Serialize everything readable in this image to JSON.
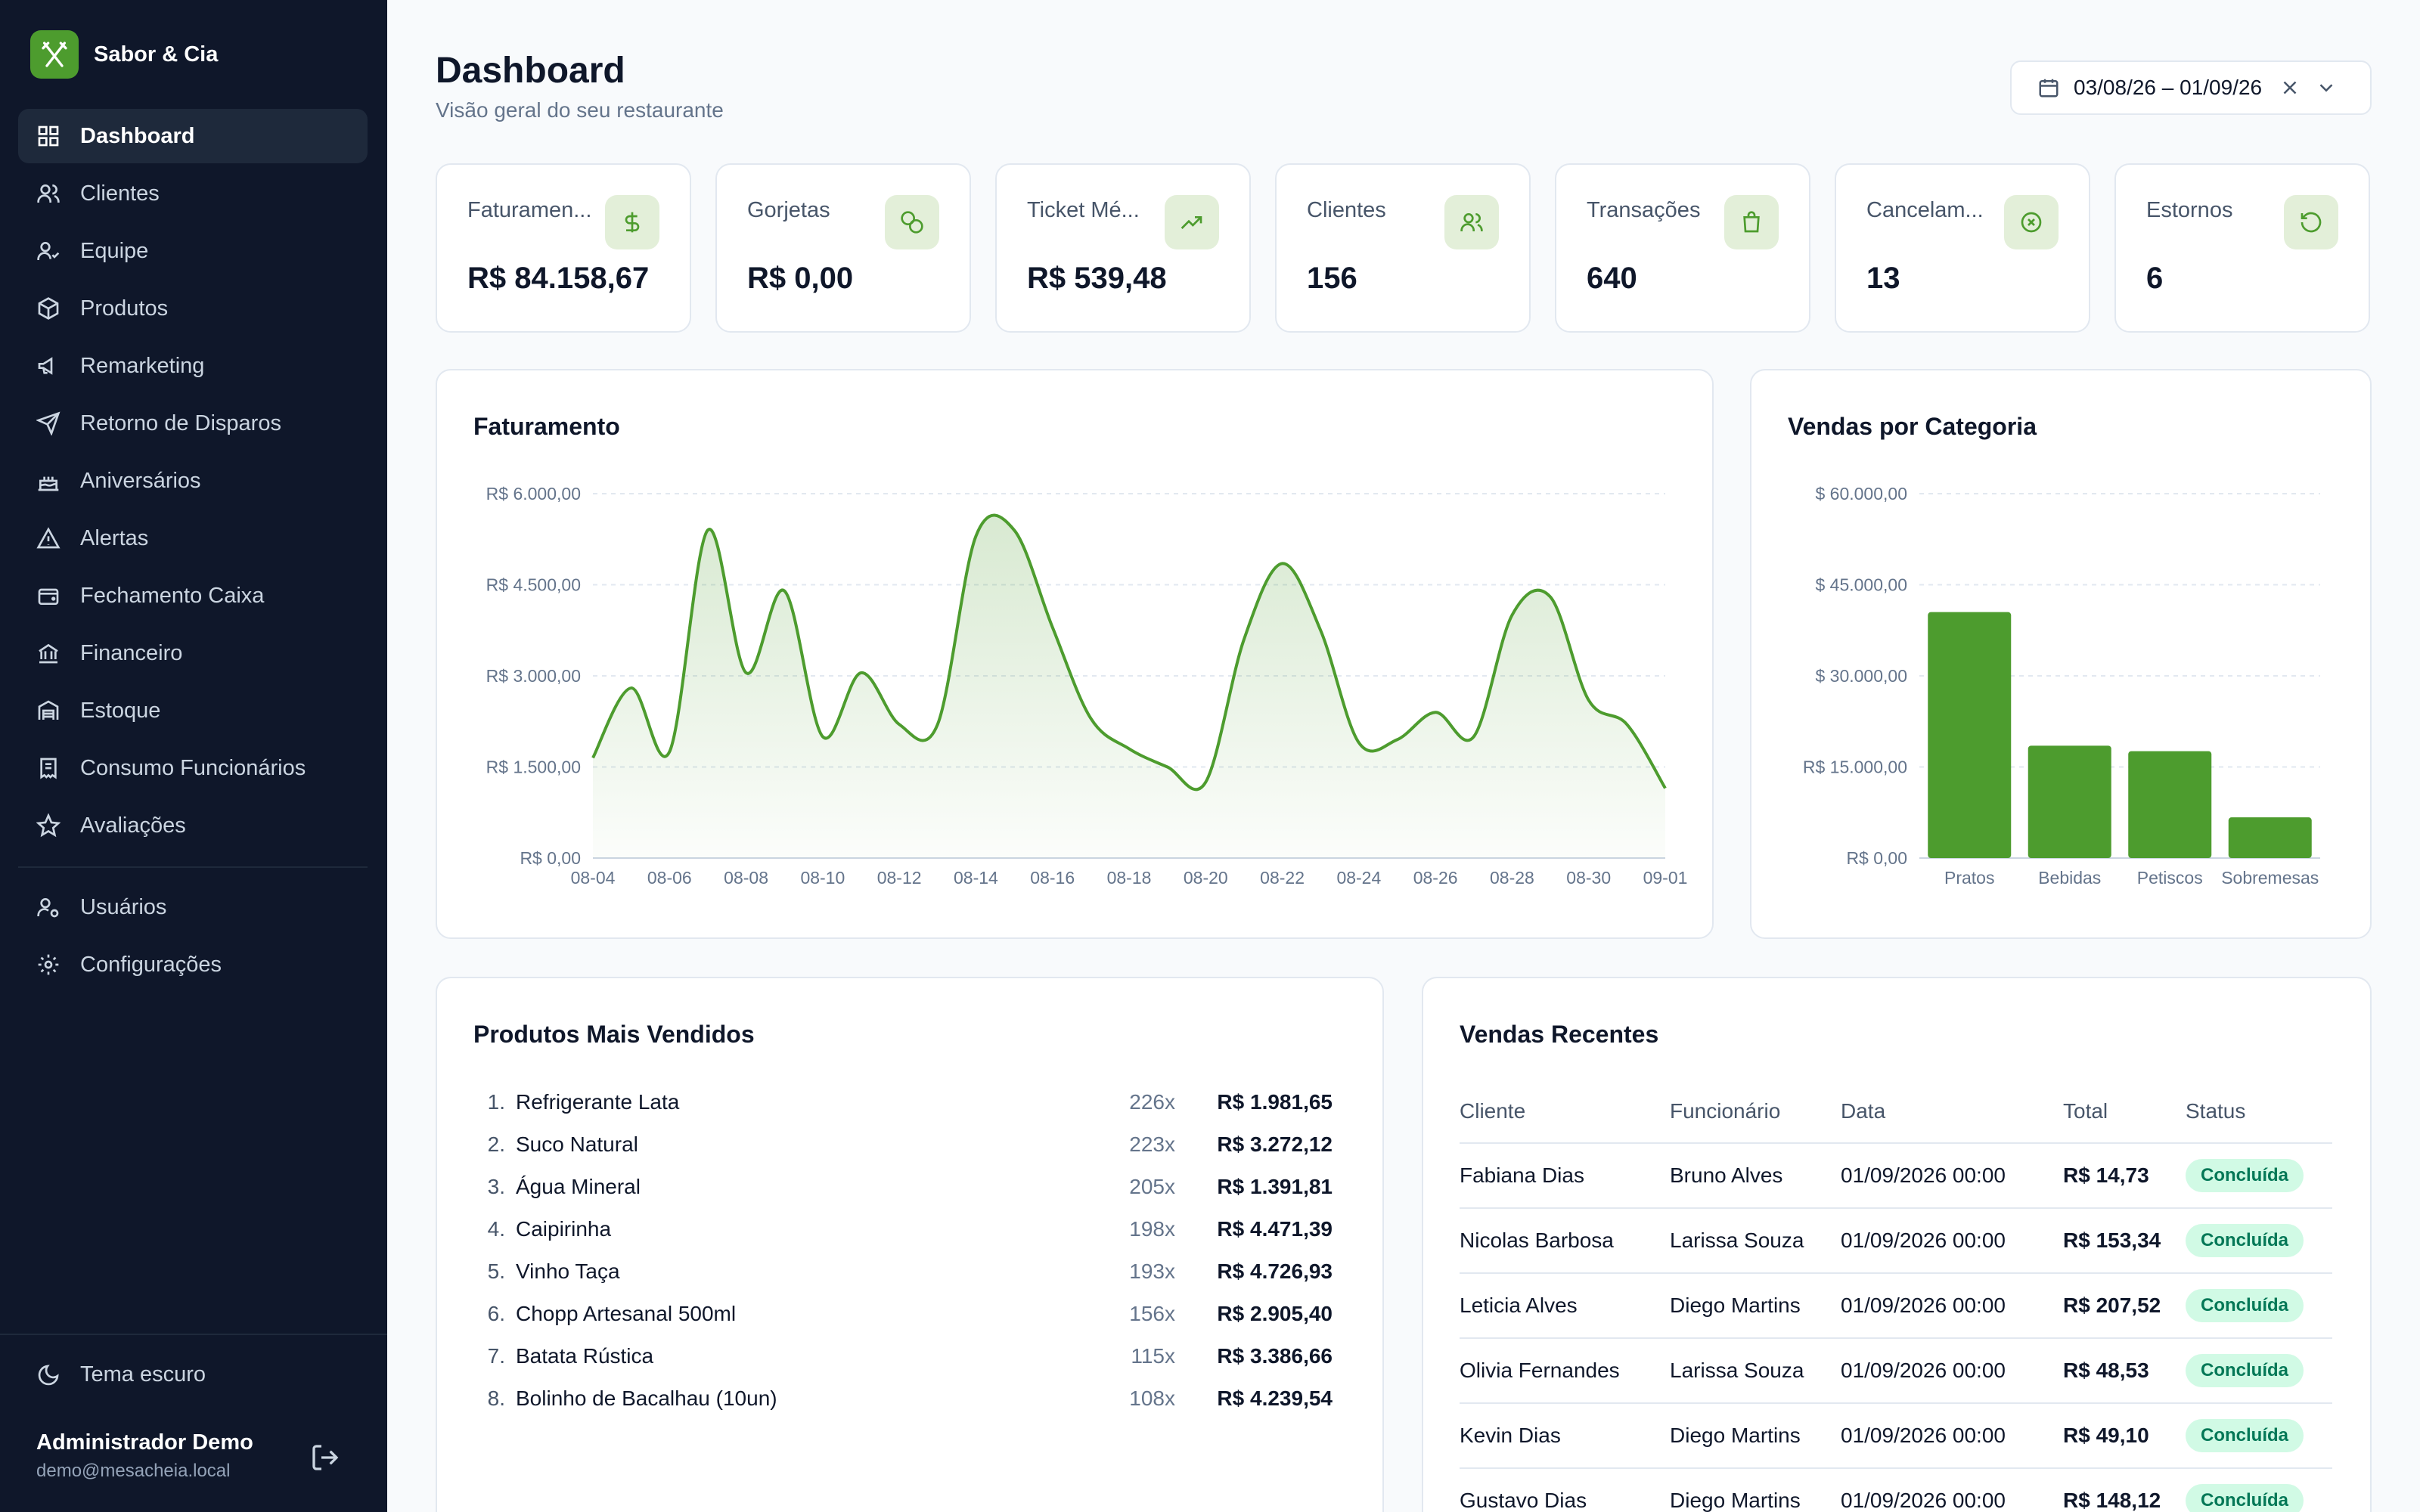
{
  "brand": {
    "name": "Sabor & Cia",
    "accent": "#4d9c2e"
  },
  "sidebar": {
    "items": [
      {
        "label": "Dashboard",
        "icon": "dashboard-icon",
        "active": true
      },
      {
        "label": "Clientes",
        "icon": "users-icon"
      },
      {
        "label": "Equipe",
        "icon": "team-icon"
      },
      {
        "label": "Produtos",
        "icon": "package-icon"
      },
      {
        "label": "Remarketing",
        "icon": "megaphone-icon"
      },
      {
        "label": "Retorno de Disparos",
        "icon": "send-icon"
      },
      {
        "label": "Aniversários",
        "icon": "cake-icon"
      },
      {
        "label": "Alertas",
        "icon": "alert-icon"
      },
      {
        "label": "Fechamento Caixa",
        "icon": "wallet-icon"
      },
      {
        "label": "Financeiro",
        "icon": "bank-icon"
      },
      {
        "label": "Estoque",
        "icon": "warehouse-icon"
      },
      {
        "label": "Consumo Funcionários",
        "icon": "receipt-icon"
      },
      {
        "label": "Avaliações",
        "icon": "star-icon"
      }
    ],
    "secondary": [
      {
        "label": "Usuários",
        "icon": "user-cog-icon"
      },
      {
        "label": "Configurações",
        "icon": "gear-icon"
      }
    ],
    "theme_toggle": "Tema escuro",
    "user": {
      "name": "Administrador Demo",
      "email": "demo@mesacheia.local"
    }
  },
  "header": {
    "title": "Dashboard",
    "subtitle": "Visão geral do seu restaurante",
    "date_range": "03/08/26 – 01/09/26"
  },
  "kpis": [
    {
      "label": "Faturamen...",
      "value": "R$ 84.158,67",
      "icon": "dollar-icon"
    },
    {
      "label": "Gorjetas",
      "value": "R$ 0,00",
      "icon": "coins-icon"
    },
    {
      "label": "Ticket Mé...",
      "value": "R$ 539,48",
      "icon": "trending-up-icon"
    },
    {
      "label": "Clientes",
      "value": "156",
      "icon": "users-icon"
    },
    {
      "label": "Transações",
      "value": "640",
      "icon": "shopping-bag-icon"
    },
    {
      "label": "Cancelam...",
      "value": "13",
      "icon": "x-circle-icon"
    },
    {
      "label": "Estornos",
      "value": "6",
      "icon": "refresh-icon"
    }
  ],
  "chart_data": [
    {
      "type": "area",
      "title": "Faturamento",
      "x": [
        "08-04",
        "08-05",
        "08-06",
        "08-07",
        "08-08",
        "08-09",
        "08-10",
        "08-11",
        "08-12",
        "08-13",
        "08-14",
        "08-15",
        "08-16",
        "08-17",
        "08-18",
        "08-19",
        "08-20",
        "08-21",
        "08-22",
        "08-23",
        "08-24",
        "08-25",
        "08-26",
        "08-27",
        "08-28",
        "08-29",
        "08-30",
        "08-31",
        "09-01"
      ],
      "y": [
        1650,
        2800,
        1750,
        5400,
        3050,
        4400,
        2000,
        3050,
        2200,
        2200,
        5300,
        5400,
        3800,
        2300,
        1800,
        1500,
        1250,
        3600,
        4850,
        3750,
        1900,
        1950,
        2400,
        2000,
        4000,
        4300,
        2600,
        2200,
        1150
      ],
      "tick_labels": [
        "08-04",
        "08-06",
        "08-08",
        "08-10",
        "08-12",
        "08-14",
        "08-16",
        "08-18",
        "08-20",
        "08-22",
        "08-24",
        "08-26",
        "08-28",
        "08-30",
        "09-01"
      ],
      "ylim": [
        0,
        6000
      ],
      "yticks": [
        "R$ 0,00",
        "R$ 1.500,00",
        "R$ 3.000,00",
        "R$ 4.500,00",
        "R$ 6.000,00"
      ],
      "color": "#4d9c2e",
      "grid": true
    },
    {
      "type": "bar",
      "title": "Vendas por Categoria",
      "categories": [
        "Pratos",
        "Bebidas",
        "Petiscos",
        "Sobremesas"
      ],
      "values": [
        40500,
        18500,
        17600,
        6700
      ],
      "ylim": [
        0,
        60000
      ],
      "yticks": [
        "R$ 0,00",
        "R$ 15.000,00",
        "$ 30.000,00",
        "$ 45.000,00",
        "$ 60.000,00"
      ],
      "color": "#4d9c2e",
      "grid": true
    }
  ],
  "top_products": {
    "title": "Produtos Mais Vendidos",
    "items": [
      {
        "rank": "1.",
        "name": "Refrigerante Lata",
        "qty": "226x",
        "total": "R$ 1.981,65"
      },
      {
        "rank": "2.",
        "name": "Suco Natural",
        "qty": "223x",
        "total": "R$ 3.272,12"
      },
      {
        "rank": "3.",
        "name": "Água Mineral",
        "qty": "205x",
        "total": "R$ 1.391,81"
      },
      {
        "rank": "4.",
        "name": "Caipirinha",
        "qty": "198x",
        "total": "R$ 4.471,39"
      },
      {
        "rank": "5.",
        "name": "Vinho Taça",
        "qty": "193x",
        "total": "R$ 4.726,93"
      },
      {
        "rank": "6.",
        "name": "Chopp Artesanal 500ml",
        "qty": "156x",
        "total": "R$ 2.905,40"
      },
      {
        "rank": "7.",
        "name": "Batata Rústica",
        "qty": "115x",
        "total": "R$ 3.386,66"
      },
      {
        "rank": "8.",
        "name": "Bolinho de Bacalhau (10un)",
        "qty": "108x",
        "total": "R$ 4.239,54"
      }
    ]
  },
  "recent_sales": {
    "title": "Vendas Recentes",
    "columns": [
      "Cliente",
      "Funcionário",
      "Data",
      "Total",
      "Status"
    ],
    "rows": [
      {
        "cliente": "Fabiana Dias",
        "funcionario": "Bruno Alves",
        "data": "01/09/2026 00:00",
        "total": "R$ 14,73",
        "status": "Concluída"
      },
      {
        "cliente": "Nicolas Barbosa",
        "funcionario": "Larissa Souza",
        "data": "01/09/2026 00:00",
        "total": "R$ 153,34",
        "status": "Concluída"
      },
      {
        "cliente": "Leticia Alves",
        "funcionario": "Diego Martins",
        "data": "01/09/2026 00:00",
        "total": "R$ 207,52",
        "status": "Concluída"
      },
      {
        "cliente": "Olivia Fernandes",
        "funcionario": "Larissa Souza",
        "data": "01/09/2026 00:00",
        "total": "R$ 48,53",
        "status": "Concluída"
      },
      {
        "cliente": "Kevin Dias",
        "funcionario": "Diego Martins",
        "data": "01/09/2026 00:00",
        "total": "R$ 49,10",
        "status": "Concluída"
      },
      {
        "cliente": "Gustavo Dias",
        "funcionario": "Diego Martins",
        "data": "01/09/2026 00:00",
        "total": "R$ 148,12",
        "status": "Concluída"
      }
    ]
  }
}
